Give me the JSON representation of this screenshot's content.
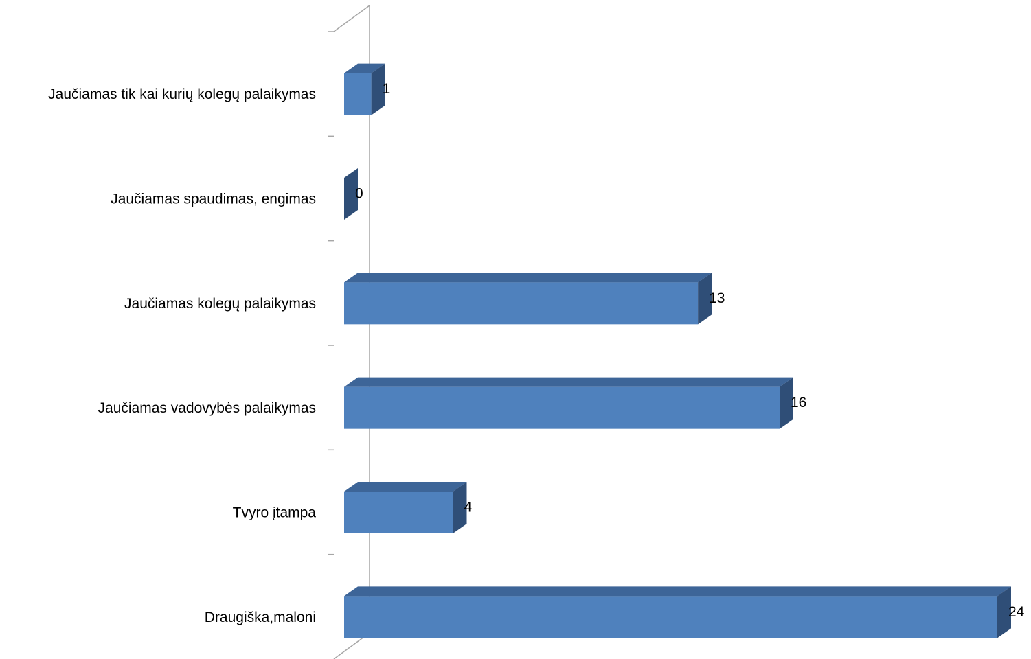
{
  "chart_data": {
    "type": "bar",
    "orientation": "horizontal",
    "style": "3d",
    "categories": [
      "Jaučiamas tik kai kurių kolegų palaikymas",
      "Jaučiamas spaudimas, engimas",
      "Jaučiamas kolegų palaikymas",
      "Jaučiamas vadovybės palaikymas",
      "Tvyro įtampa",
      "Draugiška,maloni"
    ],
    "values": [
      1,
      0,
      13,
      16,
      4,
      24
    ],
    "xlim": [
      0,
      24
    ],
    "data_labels": [
      "1",
      "0",
      "13",
      "16",
      "4",
      "24"
    ],
    "grid": false,
    "legend": "none",
    "colors": {
      "bar_front": "#4F81BD",
      "bar_top": "#3D6598",
      "bar_side": "#2F4E77",
      "axis": "#A6A6A6"
    }
  }
}
